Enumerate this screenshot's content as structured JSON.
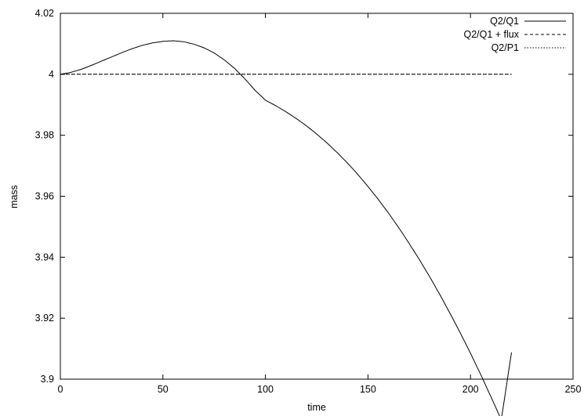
{
  "chart_data": {
    "type": "line",
    "title": "",
    "xlabel": "time",
    "ylabel": "mass",
    "xlim": [
      0,
      250
    ],
    "ylim": [
      3.9,
      4.02
    ],
    "x_ticks": [
      0,
      50,
      100,
      150,
      200,
      250
    ],
    "x_tick_labels": [
      "0",
      "50",
      "100",
      "150",
      "200",
      "250"
    ],
    "y_ticks": [
      3.9,
      3.92,
      3.94,
      3.96,
      3.98,
      4.0,
      4.02
    ],
    "y_tick_labels": [
      "3.9",
      "3.92",
      "3.94",
      "3.96",
      "3.98",
      "4",
      "4.02"
    ],
    "grid": false,
    "legend_position": "top-right",
    "series": [
      {
        "name": "Q2/Q1",
        "line_style": "solid",
        "x": [
          0,
          5,
          10,
          15,
          20,
          25,
          30,
          35,
          40,
          45,
          50,
          55,
          60,
          65,
          70,
          75,
          80,
          85,
          90,
          95,
          100,
          105,
          110,
          115,
          120,
          125,
          130,
          135,
          140,
          145,
          150,
          155,
          160,
          165,
          170,
          175,
          180,
          185,
          190,
          195,
          200,
          205,
          210,
          215,
          220
        ],
        "values": [
          4.0,
          4.0006,
          4.0016,
          4.0029,
          4.0043,
          4.0057,
          4.0071,
          4.0084,
          4.0095,
          4.0103,
          4.0108,
          4.011,
          4.0107,
          4.0099,
          4.0087,
          4.007,
          4.0047,
          4.0019,
          3.9985,
          3.9947,
          3.9915,
          3.9897,
          3.9877,
          3.9855,
          3.9831,
          3.9804,
          3.9775,
          3.9743,
          3.9709,
          3.9672,
          3.9632,
          3.959,
          3.9545,
          3.9497,
          3.9446,
          3.9393,
          3.9337,
          3.9278,
          3.9216,
          3.9152,
          3.9085,
          3.9015,
          3.8942,
          3.8867,
          3.9088
        ]
      },
      {
        "name": "Q2/Q1 + flux",
        "line_style": "dashed",
        "x": [
          0,
          220
        ],
        "values": [
          4.0,
          4.0
        ]
      },
      {
        "name": "Q2/P1",
        "line_style": "dotted",
        "x": [
          0,
          220
        ],
        "values": [
          4.0,
          4.0
        ]
      }
    ]
  }
}
